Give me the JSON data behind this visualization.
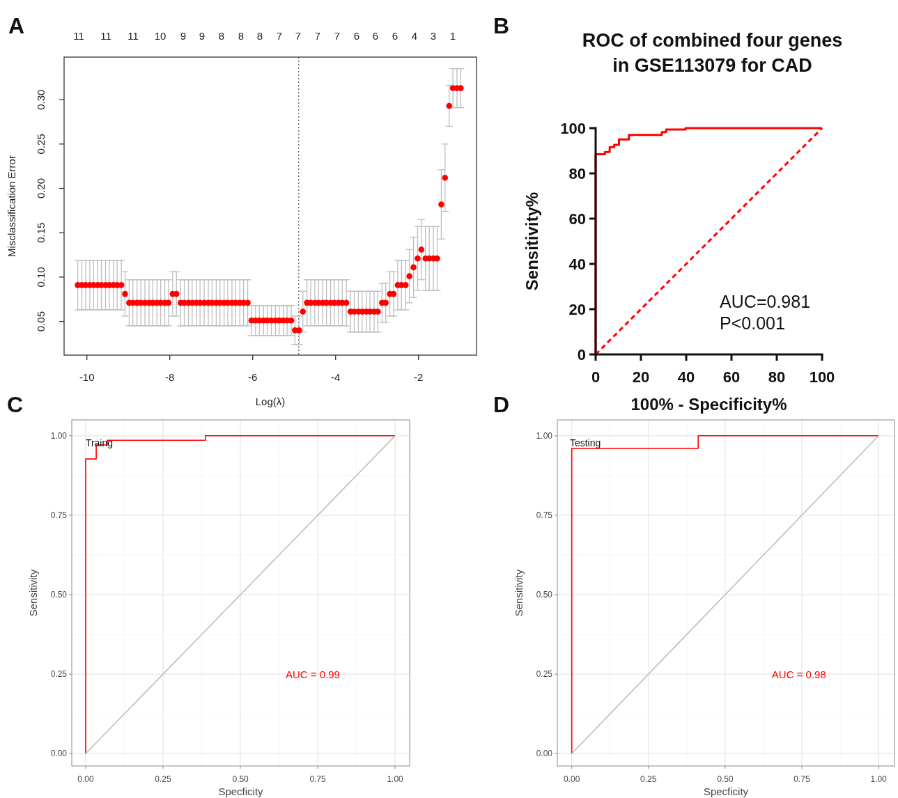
{
  "chart_data": [
    {
      "type": "scatter",
      "xlabel": "Log(λ)",
      "ylabel": "Misclassification Error",
      "annotations": [
        "A",
        "11",
        "11",
        "11",
        "10",
        "9",
        "9",
        "8",
        "8",
        "8",
        "7",
        "7",
        "7",
        "7",
        "6",
        "6",
        "6",
        "4",
        "3",
        "1"
      ],
      "marker": "circle",
      "xlim": [
        -10.55,
        -0.6
      ],
      "ylim": [
        0.012,
        0.348
      ],
      "xticks": [
        -10,
        -8,
        -6,
        -4,
        -2
      ],
      "yticks": [
        {
          "value": 0.05,
          "label": "0.05"
        },
        {
          "value": 0.1,
          "label": "0.10"
        },
        {
          "value": 0.15,
          "label": "0.15"
        },
        {
          "value": 0.2,
          "label": "0.20"
        },
        {
          "value": 0.25,
          "label": "0.25"
        },
        {
          "value": 0.3,
          "label": "0.30"
        }
      ],
      "ref_lines": [
        {
          "axis": "x",
          "value": -4.89,
          "line_style": "dotted",
          "color": "#555555"
        }
      ],
      "series": [
        {
          "color": "#ff0000",
          "x": [
            -10.22,
            -10.12,
            -10.03,
            -9.93,
            -9.84,
            -9.74,
            -9.65,
            -9.55,
            -9.46,
            -9.36,
            -9.27,
            -9.17,
            -9.08,
            -8.98,
            -8.89,
            -8.79,
            -8.7,
            -8.6,
            -8.5,
            -8.41,
            -8.31,
            -8.22,
            -8.12,
            -8.03,
            -7.93,
            -7.84,
            -7.74,
            -7.65,
            -7.55,
            -7.46,
            -7.36,
            -7.27,
            -7.17,
            -7.07,
            -6.98,
            -6.88,
            -6.79,
            -6.69,
            -6.6,
            -6.5,
            -6.41,
            -6.31,
            -6.22,
            -6.12,
            -6.03,
            -5.93,
            -5.84,
            -5.74,
            -5.65,
            -5.55,
            -5.45,
            -5.36,
            -5.26,
            -5.17,
            -5.07,
            -4.98,
            -4.88,
            -4.79,
            -4.69,
            -4.6,
            -4.5,
            -4.41,
            -4.31,
            -4.22,
            -4.12,
            -4.03,
            -3.93,
            -3.84,
            -3.74,
            -3.64,
            -3.55,
            -3.45,
            -3.36,
            -3.26,
            -3.17,
            -3.07,
            -2.98,
            -2.88,
            -2.79,
            -2.69,
            -2.6,
            -2.5,
            -2.41,
            -2.31,
            -2.22,
            -2.12,
            -2.02,
            -1.93,
            -1.83,
            -1.74,
            -1.64,
            -1.55,
            -1.45,
            -1.36,
            -1.26,
            -1.17,
            -1.07,
            -0.98
          ],
          "values": [
            0.091,
            0.091,
            0.091,
            0.091,
            0.091,
            0.091,
            0.091,
            0.091,
            0.091,
            0.091,
            0.091,
            0.091,
            0.081,
            0.071,
            0.071,
            0.071,
            0.071,
            0.071,
            0.071,
            0.071,
            0.071,
            0.071,
            0.071,
            0.071,
            0.081,
            0.081,
            0.071,
            0.071,
            0.071,
            0.071,
            0.071,
            0.071,
            0.071,
            0.071,
            0.071,
            0.071,
            0.071,
            0.071,
            0.071,
            0.071,
            0.071,
            0.071,
            0.071,
            0.071,
            0.051,
            0.051,
            0.051,
            0.051,
            0.051,
            0.051,
            0.051,
            0.051,
            0.051,
            0.051,
            0.051,
            0.04,
            0.04,
            0.061,
            0.071,
            0.071,
            0.071,
            0.071,
            0.071,
            0.071,
            0.071,
            0.071,
            0.071,
            0.071,
            0.071,
            0.061,
            0.061,
            0.061,
            0.061,
            0.061,
            0.061,
            0.061,
            0.061,
            0.071,
            0.071,
            0.081,
            0.081,
            0.091,
            0.091,
            0.091,
            0.101,
            0.111,
            0.121,
            0.131,
            0.121,
            0.121,
            0.121,
            0.121,
            0.182,
            0.212,
            0.293,
            0.313,
            0.313,
            0.313
          ],
          "errors": [
            0.028,
            0.028,
            0.028,
            0.028,
            0.028,
            0.028,
            0.028,
            0.028,
            0.028,
            0.028,
            0.028,
            0.028,
            0.025,
            0.026,
            0.026,
            0.026,
            0.026,
            0.026,
            0.026,
            0.026,
            0.026,
            0.026,
            0.026,
            0.026,
            0.025,
            0.025,
            0.026,
            0.026,
            0.026,
            0.026,
            0.026,
            0.026,
            0.026,
            0.026,
            0.026,
            0.026,
            0.026,
            0.026,
            0.026,
            0.026,
            0.026,
            0.026,
            0.026,
            0.026,
            0.017,
            0.017,
            0.017,
            0.017,
            0.017,
            0.017,
            0.017,
            0.017,
            0.017,
            0.017,
            0.017,
            0.016,
            0.016,
            0.023,
            0.026,
            0.026,
            0.026,
            0.026,
            0.026,
            0.026,
            0.026,
            0.026,
            0.026,
            0.026,
            0.026,
            0.023,
            0.023,
            0.023,
            0.023,
            0.023,
            0.023,
            0.023,
            0.023,
            0.022,
            0.022,
            0.025,
            0.025,
            0.028,
            0.028,
            0.028,
            0.03,
            0.034,
            0.036,
            0.034,
            0.036,
            0.036,
            0.036,
            0.036,
            0.039,
            0.038,
            0.023,
            0.022,
            0.022,
            0.022
          ]
        }
      ]
    },
    {
      "type": "line",
      "title": "ROC of combined four genes\nin GSE113079 for CAD",
      "xlabel": "100% - Specificity%",
      "ylabel": "Sensitivity%",
      "annotations": [
        "B",
        "AUC=0.981",
        "P<0.001"
      ],
      "xlim": [
        0,
        100
      ],
      "ylim": [
        0,
        100
      ],
      "xticks": [
        0,
        20,
        40,
        60,
        80,
        100
      ],
      "yticks": [
        0,
        20,
        40,
        60,
        80,
        100
      ],
      "series": [
        {
          "type": "step",
          "color": "#ff0000",
          "x": [
            0,
            0,
            4.1,
            6.2,
            8.2,
            10.3,
            14.7,
            29.2,
            31.1,
            39.7,
            100
          ],
          "values": [
            0,
            88.5,
            89.5,
            91.6,
            92.6,
            95,
            97,
            98.2,
            99.4,
            100,
            100
          ]
        },
        {
          "color": "#ff0000",
          "line_style": "dashed",
          "x": [
            0,
            100
          ],
          "values": [
            0,
            100
          ]
        }
      ]
    },
    {
      "type": "line",
      "xlabel": "Specficity",
      "ylabel": "Sensitivity",
      "annotations": [
        "C",
        "Traing",
        "AUC = 0.99"
      ],
      "grid": true,
      "xlim": [
        -0.045,
        1.047
      ],
      "ylim": [
        -0.039,
        1.05
      ],
      "xticks": [
        {
          "value": 0,
          "label": "0.00"
        },
        {
          "value": 0.25,
          "label": "0.25"
        },
        {
          "value": 0.5,
          "label": "0.50"
        },
        {
          "value": 0.75,
          "label": "0.75"
        },
        {
          "value": 1,
          "label": "1.00"
        }
      ],
      "yticks": [
        {
          "value": 0,
          "label": "0.00"
        },
        {
          "value": 0.25,
          "label": "0.25"
        },
        {
          "value": 0.5,
          "label": "0.50"
        },
        {
          "value": 0.75,
          "label": "0.75"
        },
        {
          "value": 1,
          "label": "1.00"
        }
      ],
      "series": [
        {
          "type": "step",
          "color": "#ff0000",
          "x": [
            0,
            0,
            0.034,
            0.07,
            0.387,
            1
          ],
          "values": [
            0,
            0.927,
            0.971,
            0.986,
            1,
            1
          ]
        },
        {
          "color": "#bebebe",
          "x": [
            0,
            1
          ],
          "values": [
            0,
            1
          ]
        }
      ]
    },
    {
      "type": "line",
      "xlabel": "Specficity",
      "ylabel": "Sensitivity",
      "annotations": [
        "D",
        "Testing",
        "AUC = 0.98"
      ],
      "grid": true,
      "xlim": [
        -0.047,
        1.052
      ],
      "ylim": [
        -0.039,
        1.05
      ],
      "xticks": [
        {
          "value": 0,
          "label": "0.00"
        },
        {
          "value": 0.25,
          "label": "0.25"
        },
        {
          "value": 0.5,
          "label": "0.50"
        },
        {
          "value": 0.75,
          "label": "0.75"
        },
        {
          "value": 1,
          "label": "1.00"
        }
      ],
      "yticks": [
        {
          "value": 0,
          "label": "0.00"
        },
        {
          "value": 0.25,
          "label": "0.25"
        },
        {
          "value": 0.5,
          "label": "0.50"
        },
        {
          "value": 0.75,
          "label": "0.75"
        },
        {
          "value": 1,
          "label": "1.00"
        }
      ],
      "series": [
        {
          "type": "step",
          "color": "#ff0000",
          "x": [
            0,
            0,
            0.412,
            1
          ],
          "values": [
            0,
            0.96,
            1,
            1
          ]
        },
        {
          "color": "#bebebe",
          "x": [
            0,
            1
          ],
          "values": [
            0,
            1
          ]
        }
      ]
    }
  ]
}
